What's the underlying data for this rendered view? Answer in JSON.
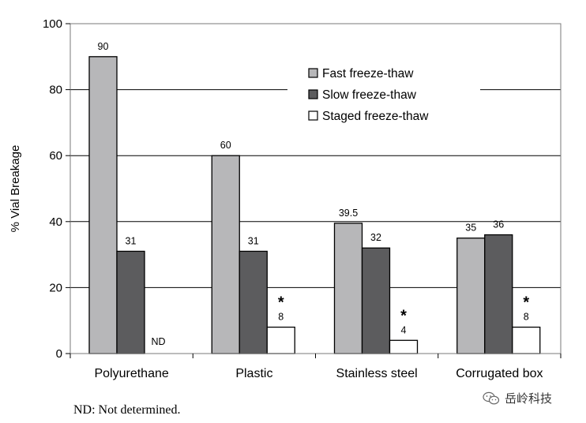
{
  "chart_data": {
    "type": "bar",
    "title": "",
    "xlabel": "",
    "ylabel": "% Vial Breakage",
    "ylim": [
      0,
      100
    ],
    "yticks": [
      0,
      20,
      40,
      60,
      80,
      100
    ],
    "grid": true,
    "legend_position": "top-right",
    "categories": [
      "Polyurethane",
      "Plastic",
      "Stainless steel",
      "Corrugated box"
    ],
    "series": [
      {
        "name": "Fast freeze-thaw",
        "color": "#b7b7b9",
        "values": [
          90,
          60,
          39.5,
          35
        ],
        "labels": [
          "90",
          "60",
          "39.5",
          "35"
        ]
      },
      {
        "name": "Slow freeze-thaw",
        "color": "#5c5c5e",
        "values": [
          31,
          31,
          32,
          36
        ],
        "labels": [
          "31",
          "31",
          "32",
          "36"
        ]
      },
      {
        "name": "Staged freeze-thaw",
        "color": "#ffffff",
        "values": [
          null,
          8,
          4,
          8
        ],
        "labels": [
          "ND",
          "8",
          "4",
          "8"
        ]
      }
    ],
    "markers": [
      {
        "category": "Plastic",
        "series": "Staged freeze-thaw",
        "symbol": "*"
      },
      {
        "category": "Stainless steel",
        "series": "Staged freeze-thaw",
        "symbol": "*"
      },
      {
        "category": "Corrugated box",
        "series": "Staged freeze-thaw",
        "symbol": "*"
      }
    ],
    "footnote": "ND: Not determined."
  },
  "watermark": {
    "text": "岳岭科技",
    "icon": "wechat-icon"
  }
}
